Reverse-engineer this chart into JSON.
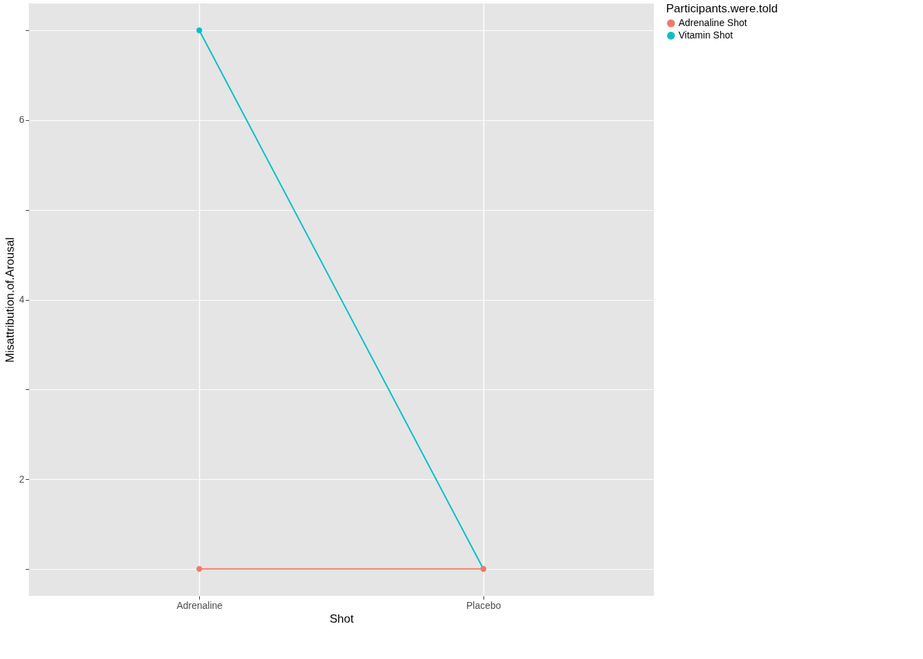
{
  "chart_data": {
    "type": "line",
    "xlabel": "Shot",
    "ylabel": "Misattribution.of.Arousal",
    "legend_title": "Participants.were.told",
    "categories": [
      "Adrenaline",
      "Placebo"
    ],
    "series": [
      {
        "name": "Adrenaline Shot",
        "color": "#f8766d",
        "values": [
          1,
          1
        ]
      },
      {
        "name": "Vitamin Shot",
        "color": "#00bfc4",
        "values": [
          7,
          1
        ]
      }
    ],
    "ylim": [
      0.7,
      7.3
    ],
    "yticks": [
      {
        "value": 1,
        "label": null
      },
      2,
      {
        "value": 3,
        "label": null
      },
      4,
      {
        "value": 5,
        "label": null
      },
      6,
      {
        "value": 7,
        "label": null
      }
    ],
    "grid": true,
    "legend": "right",
    "marker": "circle",
    "line_style": "solid"
  }
}
